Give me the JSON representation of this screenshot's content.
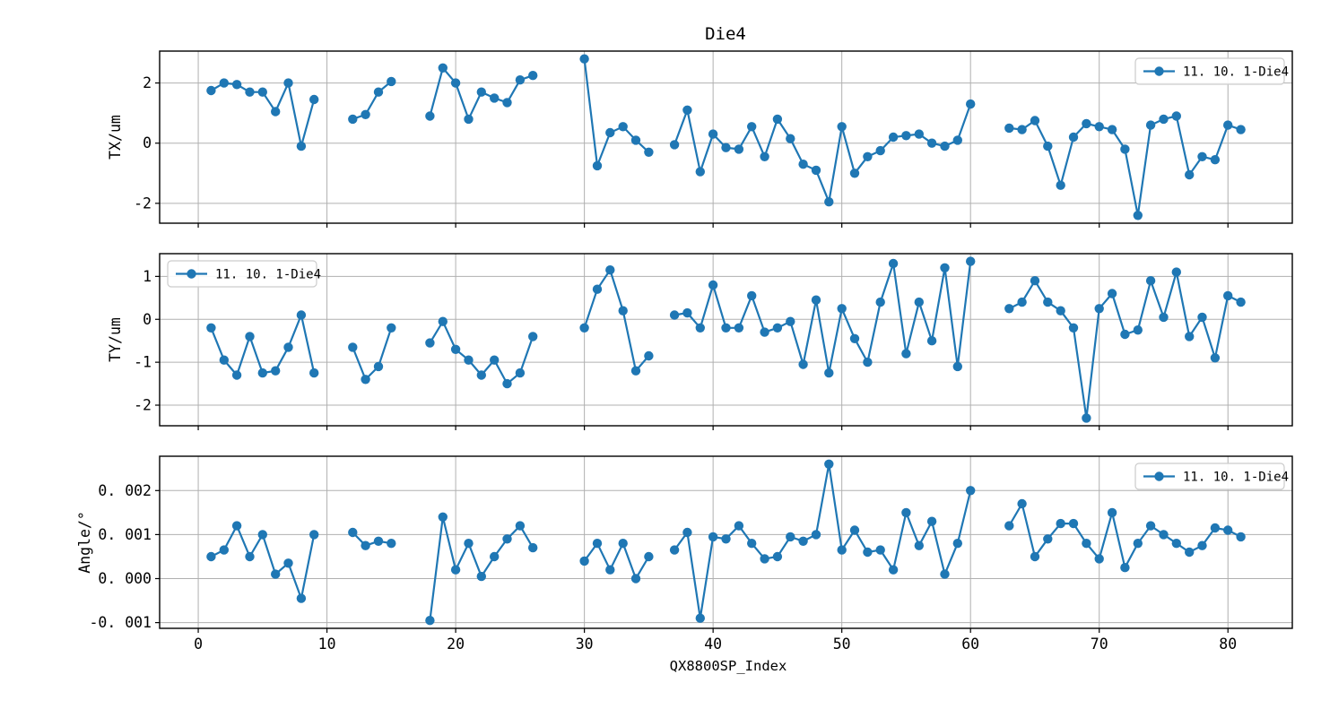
{
  "title": "Die4",
  "legend_label": "11. 10. 1-Die4",
  "colors": {
    "line": "#1f77b4",
    "marker": "#1f77b4",
    "grid": "#b0b0b0",
    "frame": "#000000",
    "background": "#ffffff",
    "legend_border": "#cccccc",
    "legend_fill": "#ffffff"
  },
  "x_axis": {
    "label": "QX8800SP_Index",
    "range": [
      -3,
      85
    ],
    "ticks": [
      0,
      10,
      20,
      30,
      40,
      50,
      60,
      70,
      80
    ],
    "tick_labels": [
      "0",
      "10",
      "20",
      "30",
      "40",
      "50",
      "60",
      "70",
      "80"
    ]
  },
  "chart_data": [
    {
      "type": "line",
      "ylabel": "TX/um",
      "ylim": [
        -2.66,
        3.06
      ],
      "yticks": [
        -2,
        0,
        2
      ],
      "ytick_labels": [
        "-2",
        "0",
        "2"
      ],
      "legend": {
        "label": "11. 10. 1-Die4",
        "position": "top-right"
      },
      "series": [
        {
          "name": "11. 10. 1-Die4",
          "points": [
            [
              1,
              1.75
            ],
            [
              2,
              2.0
            ],
            [
              3,
              1.95
            ],
            [
              4,
              1.7
            ],
            [
              5,
              1.7
            ],
            [
              6,
              1.05
            ],
            [
              7,
              2.0
            ],
            [
              8,
              -0.1
            ],
            [
              9,
              1.45
            ],
            [
              12,
              0.8
            ],
            [
              13,
              0.95
            ],
            [
              14,
              1.7
            ],
            [
              15,
              2.05
            ],
            [
              18,
              0.9
            ],
            [
              19,
              2.5
            ],
            [
              20,
              2.0
            ],
            [
              21,
              0.8
            ],
            [
              22,
              1.7
            ],
            [
              23,
              1.5
            ],
            [
              24,
              1.35
            ],
            [
              25,
              2.1
            ],
            [
              26,
              2.25
            ],
            [
              30,
              2.8
            ],
            [
              31,
              -0.75
            ],
            [
              32,
              0.35
            ],
            [
              33,
              0.55
            ],
            [
              34,
              0.1
            ],
            [
              35,
              -0.3
            ],
            [
              37,
              -0.05
            ],
            [
              38,
              1.1
            ],
            [
              39,
              -0.95
            ],
            [
              40,
              0.3
            ],
            [
              41,
              -0.15
            ],
            [
              42,
              -0.2
            ],
            [
              43,
              0.55
            ],
            [
              44,
              -0.45
            ],
            [
              45,
              0.8
            ],
            [
              46,
              0.15
            ],
            [
              47,
              -0.7
            ],
            [
              48,
              -0.9
            ],
            [
              49,
              -1.95
            ],
            [
              50,
              0.55
            ],
            [
              51,
              -1.0
            ],
            [
              52,
              -0.45
            ],
            [
              53,
              -0.25
            ],
            [
              54,
              0.2
            ],
            [
              55,
              0.25
            ],
            [
              56,
              0.3
            ],
            [
              57,
              0.0
            ],
            [
              58,
              -0.1
            ],
            [
              59,
              0.1
            ],
            [
              60,
              1.3
            ],
            [
              63,
              0.5
            ],
            [
              64,
              0.45
            ],
            [
              65,
              0.75
            ],
            [
              66,
              -0.1
            ],
            [
              67,
              -1.4
            ],
            [
              68,
              0.2
            ],
            [
              69,
              0.65
            ],
            [
              70,
              0.55
            ],
            [
              71,
              0.45
            ],
            [
              72,
              -0.2
            ],
            [
              73,
              -2.4
            ],
            [
              74,
              0.6
            ],
            [
              75,
              0.8
            ],
            [
              76,
              0.9
            ],
            [
              77,
              -1.05
            ],
            [
              78,
              -0.45
            ],
            [
              79,
              -0.55
            ],
            [
              80,
              0.6
            ],
            [
              81,
              0.45
            ]
          ]
        }
      ]
    },
    {
      "type": "line",
      "ylabel": "TY/um",
      "ylim": [
        -2.48,
        1.53
      ],
      "yticks": [
        -2,
        -1,
        0,
        1
      ],
      "ytick_labels": [
        "-2",
        "-1",
        "0",
        "1"
      ],
      "legend": {
        "label": "11. 10. 1-Die4",
        "position": "top-left"
      },
      "series": [
        {
          "name": "11. 10. 1-Die4",
          "points": [
            [
              1,
              -0.2
            ],
            [
              2,
              -0.95
            ],
            [
              3,
              -1.3
            ],
            [
              4,
              -0.4
            ],
            [
              5,
              -1.25
            ],
            [
              6,
              -1.2
            ],
            [
              7,
              -0.65
            ],
            [
              8,
              0.1
            ],
            [
              9,
              -1.25
            ],
            [
              12,
              -0.65
            ],
            [
              13,
              -1.4
            ],
            [
              14,
              -1.1
            ],
            [
              15,
              -0.2
            ],
            [
              18,
              -0.55
            ],
            [
              19,
              -0.05
            ],
            [
              20,
              -0.7
            ],
            [
              21,
              -0.95
            ],
            [
              22,
              -1.3
            ],
            [
              23,
              -0.95
            ],
            [
              24,
              -1.5
            ],
            [
              25,
              -1.25
            ],
            [
              26,
              -0.4
            ],
            [
              30,
              -0.2
            ],
            [
              31,
              0.7
            ],
            [
              32,
              1.15
            ],
            [
              33,
              0.2
            ],
            [
              34,
              -1.2
            ],
            [
              35,
              -0.85
            ],
            [
              37,
              0.1
            ],
            [
              38,
              0.15
            ],
            [
              39,
              -0.2
            ],
            [
              40,
              0.8
            ],
            [
              41,
              -0.2
            ],
            [
              42,
              -0.2
            ],
            [
              43,
              0.55
            ],
            [
              44,
              -0.3
            ],
            [
              45,
              -0.2
            ],
            [
              46,
              -0.05
            ],
            [
              47,
              -1.05
            ],
            [
              48,
              0.45
            ],
            [
              49,
              -1.25
            ],
            [
              50,
              0.25
            ],
            [
              51,
              -0.45
            ],
            [
              52,
              -1.0
            ],
            [
              53,
              0.4
            ],
            [
              54,
              1.3
            ],
            [
              55,
              -0.8
            ],
            [
              56,
              0.4
            ],
            [
              57,
              -0.5
            ],
            [
              58,
              1.2
            ],
            [
              59,
              -1.1
            ],
            [
              60,
              1.35
            ],
            [
              63,
              0.25
            ],
            [
              64,
              0.4
            ],
            [
              65,
              0.9
            ],
            [
              66,
              0.4
            ],
            [
              67,
              0.2
            ],
            [
              68,
              -0.2
            ],
            [
              69,
              -2.3
            ],
            [
              70,
              0.25
            ],
            [
              71,
              0.6
            ],
            [
              72,
              -0.35
            ],
            [
              73,
              -0.25
            ],
            [
              74,
              0.9
            ],
            [
              75,
              0.05
            ],
            [
              76,
              1.1
            ],
            [
              77,
              -0.4
            ],
            [
              78,
              0.05
            ],
            [
              79,
              -0.9
            ],
            [
              80,
              0.55
            ],
            [
              81,
              0.4
            ]
          ]
        }
      ]
    },
    {
      "type": "line",
      "ylabel": "Angle/°",
      "ylim": [
        -0.00113,
        0.00278
      ],
      "yticks": [
        -0.001,
        0.0,
        0.001,
        0.002
      ],
      "ytick_labels": [
        "-0. 001",
        "0. 000",
        "0. 001",
        "0. 002"
      ],
      "legend": {
        "label": "11. 10. 1-Die4",
        "position": "top-right"
      },
      "series": [
        {
          "name": "11. 10. 1-Die4",
          "points": [
            [
              1,
              0.0005
            ],
            [
              2,
              0.00065
            ],
            [
              3,
              0.0012
            ],
            [
              4,
              0.0005
            ],
            [
              5,
              0.001
            ],
            [
              6,
              0.0001
            ],
            [
              7,
              0.00035
            ],
            [
              8,
              -0.00045
            ],
            [
              9,
              0.001
            ],
            [
              12,
              0.00105
            ],
            [
              13,
              0.00075
            ],
            [
              14,
              0.00085
            ],
            [
              15,
              0.0008
            ],
            [
              18,
              -0.00095
            ],
            [
              19,
              0.0014
            ],
            [
              20,
              0.0002
            ],
            [
              21,
              0.0008
            ],
            [
              22,
              5e-05
            ],
            [
              23,
              0.0005
            ],
            [
              24,
              0.0009
            ],
            [
              25,
              0.0012
            ],
            [
              26,
              0.0007
            ],
            [
              30,
              0.0004
            ],
            [
              31,
              0.0008
            ],
            [
              32,
              0.0002
            ],
            [
              33,
              0.0008
            ],
            [
              34,
              0.0
            ],
            [
              35,
              0.0005
            ],
            [
              37,
              0.00065
            ],
            [
              38,
              0.00105
            ],
            [
              39,
              -0.0009
            ],
            [
              40,
              0.00095
            ],
            [
              41,
              0.0009
            ],
            [
              42,
              0.0012
            ],
            [
              43,
              0.0008
            ],
            [
              44,
              0.00045
            ],
            [
              45,
              0.0005
            ],
            [
              46,
              0.00095
            ],
            [
              47,
              0.00085
            ],
            [
              48,
              0.001
            ],
            [
              49,
              0.0026
            ],
            [
              50,
              0.00065
            ],
            [
              51,
              0.0011
            ],
            [
              52,
              0.0006
            ],
            [
              53,
              0.00065
            ],
            [
              54,
              0.0002
            ],
            [
              55,
              0.0015
            ],
            [
              56,
              0.00075
            ],
            [
              57,
              0.0013
            ],
            [
              58,
              0.0001
            ],
            [
              59,
              0.0008
            ],
            [
              60,
              0.002
            ],
            [
              63,
              0.0012
            ],
            [
              64,
              0.0017
            ],
            [
              65,
              0.0005
            ],
            [
              66,
              0.0009
            ],
            [
              67,
              0.00125
            ],
            [
              68,
              0.00125
            ],
            [
              69,
              0.0008
            ],
            [
              70,
              0.00045
            ],
            [
              71,
              0.0015
            ],
            [
              72,
              0.00025
            ],
            [
              73,
              0.0008
            ],
            [
              74,
              0.0012
            ],
            [
              75,
              0.001
            ],
            [
              76,
              0.0008
            ],
            [
              77,
              0.0006
            ],
            [
              78,
              0.00075
            ],
            [
              79,
              0.00115
            ],
            [
              80,
              0.0011
            ],
            [
              81,
              0.00095
            ]
          ]
        }
      ]
    }
  ]
}
